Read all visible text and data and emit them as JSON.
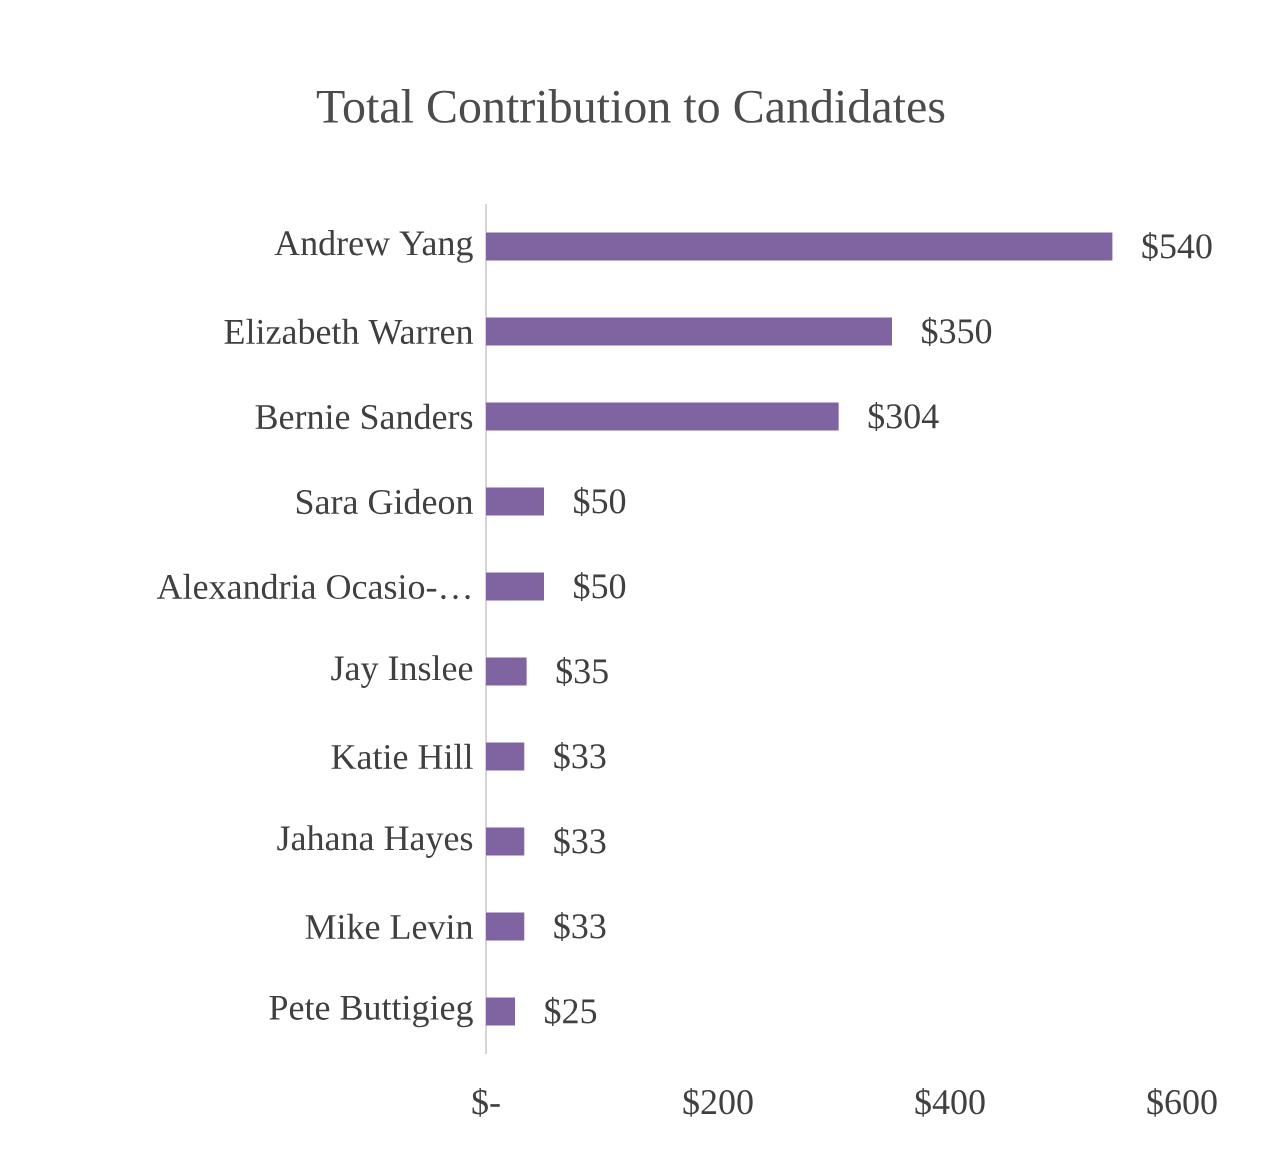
{
  "chart_data": {
    "type": "bar",
    "orientation": "horizontal",
    "title": "Total Contribution to Candidates",
    "categories": [
      "Andrew Yang",
      "Elizabeth Warren",
      "Bernie Sanders",
      "Sara Gideon",
      "Alexandria Ocasio-…",
      "Jay Inslee",
      "Katie Hill",
      "Jahana Hayes",
      "Mike Levin",
      "Pete Buttigieg"
    ],
    "values": [
      540,
      350,
      304,
      50,
      50,
      35,
      33,
      33,
      33,
      25
    ],
    "value_labels": [
      "$540",
      "$350",
      "$304",
      "$50",
      "$50",
      "$35",
      "$33",
      "$33",
      "$33",
      "$25"
    ],
    "color": "#8064a2",
    "xlim": [
      0,
      600
    ],
    "xticks": [
      {
        "value": 0,
        "label": "$-"
      },
      {
        "value": 200,
        "label": "$200"
      },
      {
        "value": 400,
        "label": "$400"
      },
      {
        "value": 600,
        "label": "$600"
      }
    ]
  }
}
